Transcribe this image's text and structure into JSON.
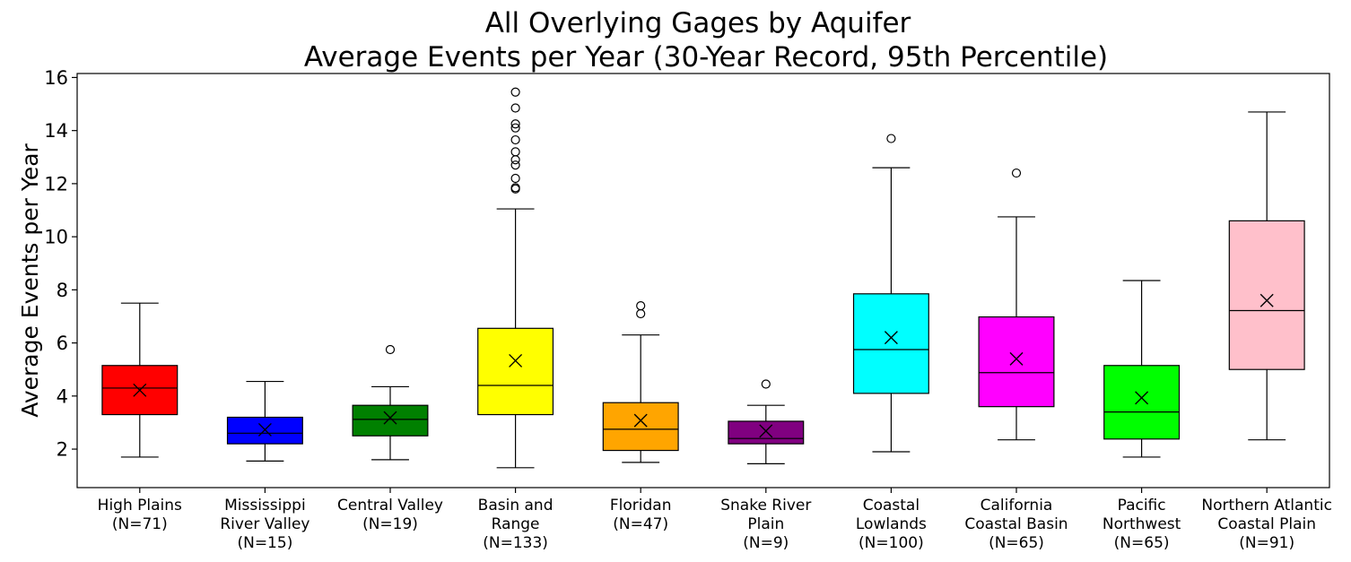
{
  "chart_data": {
    "type": "box",
    "title_lines": [
      "All Overlying Gages by Aquifer",
      "Average Events per Year (30-Year Record, 95th Percentile)"
    ],
    "ylabel": "Average Events per Year",
    "xlabel": "",
    "ylim": [
      0.55,
      16.15
    ],
    "yticks": [
      2,
      4,
      6,
      8,
      10,
      12,
      14,
      16
    ],
    "grid": false,
    "mean_marker": "x",
    "categories": [
      {
        "label_lines": [
          "High Plains",
          "(N=71)"
        ],
        "color": "#ff0000",
        "whisker_low": 1.7,
        "q1": 3.3,
        "median": 4.3,
        "q3": 5.15,
        "whisker_high": 7.5,
        "mean": 4.22,
        "outliers": []
      },
      {
        "label_lines": [
          "Mississippi",
          "River Valley",
          "(N=15)"
        ],
        "color": "#0000ff",
        "whisker_low": 1.55,
        "q1": 2.2,
        "median": 2.6,
        "q3": 3.2,
        "whisker_high": 4.55,
        "mean": 2.73,
        "outliers": []
      },
      {
        "label_lines": [
          "Central Valley",
          "(N=19)"
        ],
        "color": "#008000",
        "whisker_low": 1.6,
        "q1": 2.5,
        "median": 3.12,
        "q3": 3.65,
        "whisker_high": 4.35,
        "mean": 3.18,
        "outliers": [
          5.75
        ]
      },
      {
        "label_lines": [
          "Basin and",
          "Range",
          "(N=133)"
        ],
        "color": "#ffff00",
        "whisker_low": 1.3,
        "q1": 3.3,
        "median": 4.4,
        "q3": 6.55,
        "whisker_high": 11.05,
        "mean": 5.33,
        "outliers": [
          11.8,
          11.85,
          12.2,
          12.7,
          12.9,
          13.2,
          13.65,
          14.1,
          14.25,
          14.85,
          15.45
        ]
      },
      {
        "label_lines": [
          "Floridan",
          "(N=47)"
        ],
        "color": "#ffa500",
        "whisker_low": 1.5,
        "q1": 1.95,
        "median": 2.75,
        "q3": 3.75,
        "whisker_high": 6.3,
        "mean": 3.08,
        "outliers": [
          7.1,
          7.4
        ]
      },
      {
        "label_lines": [
          "Snake River",
          "Plain",
          "(N=9)"
        ],
        "color": "#800080",
        "whisker_low": 1.45,
        "q1": 2.2,
        "median": 2.4,
        "q3": 3.05,
        "whisker_high": 3.65,
        "mean": 2.68,
        "outliers": [
          4.45
        ]
      },
      {
        "label_lines": [
          "Coastal",
          "Lowlands",
          "(N=100)"
        ],
        "color": "#00ffff",
        "whisker_low": 1.9,
        "q1": 4.1,
        "median": 5.75,
        "q3": 7.85,
        "whisker_high": 12.6,
        "mean": 6.2,
        "outliers": [
          13.7
        ]
      },
      {
        "label_lines": [
          "California",
          "Coastal Basin",
          "(N=65)"
        ],
        "color": "#ff00ff",
        "whisker_low": 2.35,
        "q1": 3.6,
        "median": 4.88,
        "q3": 6.98,
        "whisker_high": 10.75,
        "mean": 5.4,
        "outliers": [
          12.4
        ]
      },
      {
        "label_lines": [
          "Pacific",
          "Northwest",
          "(N=65)"
        ],
        "color": "#00ff00",
        "whisker_low": 1.7,
        "q1": 2.38,
        "median": 3.4,
        "q3": 5.15,
        "whisker_high": 8.35,
        "mean": 3.93,
        "outliers": []
      },
      {
        "label_lines": [
          "Northern Atlantic",
          "Coastal Plain",
          "(N=91)"
        ],
        "color": "#ffc0cb",
        "whisker_low": 2.35,
        "q1": 5.0,
        "median": 7.22,
        "q3": 10.6,
        "whisker_high": 14.7,
        "mean": 7.6,
        "outliers": []
      }
    ]
  }
}
